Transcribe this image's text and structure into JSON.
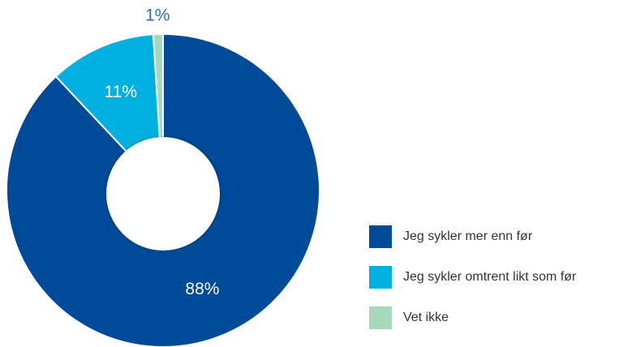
{
  "chart_data": {
    "type": "pie",
    "categories": [
      "Jeg sykler mer enn før",
      "Jeg sykler omtrent likt som før",
      "Vet ikke"
    ],
    "values": [
      88,
      11,
      1
    ],
    "value_labels": [
      "88%",
      "11%",
      "1%"
    ],
    "colors": [
      "#004a9a",
      "#00b0e0",
      "#a6d8bc"
    ],
    "donut": true,
    "legend": "right"
  }
}
